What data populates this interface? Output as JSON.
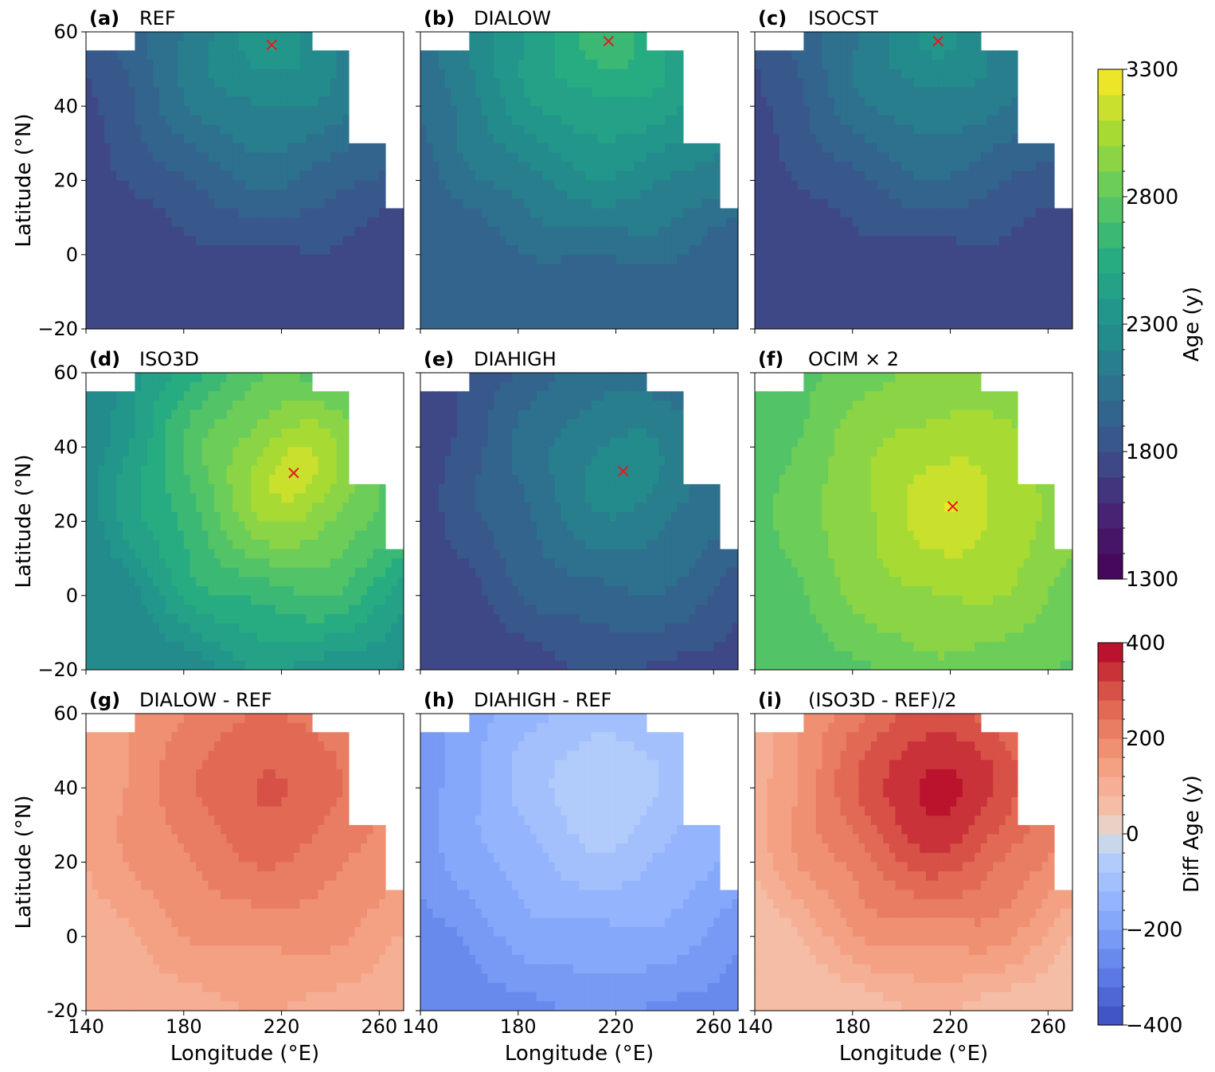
{
  "chart_data": [
    {
      "type": "heatmap",
      "letter": "(a)",
      "name": "REF",
      "xlabel": "",
      "ylabel": "Latitude (°N)",
      "xlim": [
        140,
        270
      ],
      "ylim": [
        -20,
        60
      ],
      "xticks": [],
      "yticks": [
        "60",
        "40",
        "20",
        "0",
        "−20"
      ],
      "max_marker": {
        "lon": 216,
        "lat": 56.5
      },
      "age_range": [
        1700,
        2400
      ],
      "colorbar": "age"
    },
    {
      "type": "heatmap",
      "letter": "(b)",
      "name": "DIALOW",
      "xlabel": "",
      "ylabel": "",
      "xlim": [
        140,
        270
      ],
      "ylim": [
        -20,
        60
      ],
      "xticks": [],
      "yticks": [],
      "max_marker": {
        "lon": 217,
        "lat": 57.5
      },
      "age_range": [
        1950,
        2700
      ],
      "colorbar": "age"
    },
    {
      "type": "heatmap",
      "letter": "(c)",
      "name": "ISOCST",
      "xlabel": "",
      "ylabel": "",
      "xlim": [
        140,
        270
      ],
      "ylim": [
        -20,
        60
      ],
      "xticks": [],
      "yticks": [],
      "max_marker": {
        "lon": 215,
        "lat": 57.5
      },
      "age_range": [
        1700,
        2350
      ],
      "colorbar": "age"
    },
    {
      "type": "heatmap",
      "letter": "(d)",
      "name": "ISO3D",
      "xlabel": "",
      "ylabel": "Latitude (°N)",
      "xlim": [
        140,
        270
      ],
      "ylim": [
        -20,
        60
      ],
      "xticks": [],
      "yticks": [
        "60",
        "40",
        "20",
        "0",
        "−20"
      ],
      "max_marker": {
        "lon": 225,
        "lat": 33
      },
      "age_range": [
        2200,
        3200
      ],
      "colorbar": "age"
    },
    {
      "type": "heatmap",
      "letter": "(e)",
      "name": "DIAHIGH",
      "xlabel": "",
      "ylabel": "",
      "xlim": [
        140,
        270
      ],
      "ylim": [
        -20,
        60
      ],
      "xticks": [],
      "yticks": [],
      "max_marker": {
        "lon": 223,
        "lat": 33.5
      },
      "age_range": [
        1700,
        2300
      ],
      "colorbar": "age"
    },
    {
      "type": "heatmap",
      "letter": "(f)",
      "name": "OCIM × 2",
      "xlabel": "",
      "ylabel": "",
      "xlim": [
        140,
        270
      ],
      "ylim": [
        -20,
        60
      ],
      "xticks": [],
      "yticks": [],
      "max_marker": {
        "lon": 221,
        "lat": 24
      },
      "age_range": [
        2700,
        3200
      ],
      "colorbar": "age"
    },
    {
      "type": "heatmap",
      "letter": "(g)",
      "name": "DIALOW - REF",
      "xlabel": "Longitude (°E)",
      "ylabel": "Latitude (°N)",
      "xlim": [
        140,
        270
      ],
      "ylim": [
        -20,
        60
      ],
      "xticks": [
        "140",
        "180",
        "220",
        "260"
      ],
      "yticks": [
        "60",
        "40",
        "20",
        "0",
        "-20"
      ],
      "diff_range": [
        100,
        300
      ],
      "colorbar": "diff"
    },
    {
      "type": "heatmap",
      "letter": "(h)",
      "name": "DIAHIGH - REF",
      "xlabel": "Longitude (°E)",
      "ylabel": "",
      "xlim": [
        140,
        270
      ],
      "ylim": [
        -20,
        60
      ],
      "xticks": [
        "140",
        "180",
        "220",
        "260"
      ],
      "yticks": [],
      "diff_range": [
        -250,
        -30
      ],
      "colorbar": "diff"
    },
    {
      "type": "heatmap",
      "letter": "(i)",
      "name": "(ISO3D - REF)/2",
      "xlabel": "Longitude (°E)",
      "ylabel": "",
      "xlim": [
        140,
        270
      ],
      "ylim": [
        -20,
        60
      ],
      "xticks": [
        "140",
        "180",
        "220",
        "260"
      ],
      "yticks": [],
      "diff_range": [
        50,
        400
      ],
      "colorbar": "diff"
    }
  ],
  "colorbars": {
    "age": {
      "label": "Age (y)",
      "min": 1300,
      "max": 3300,
      "ticks": [
        "3300",
        "2800",
        "2300",
        "1800",
        "1300"
      ],
      "tick_values": [
        3300,
        2800,
        2300,
        1800,
        1300
      ],
      "levels": 20
    },
    "diff": {
      "label": "Diff Age (y)",
      "min": -400,
      "max": 400,
      "ticks": [
        "400",
        "200",
        "0",
        "−200",
        "−400"
      ],
      "tick_values": [
        400,
        200,
        0,
        -200,
        -400
      ],
      "levels": 20
    }
  },
  "colors": {
    "marker": "#e41a1c",
    "mask": "#ffffff"
  }
}
